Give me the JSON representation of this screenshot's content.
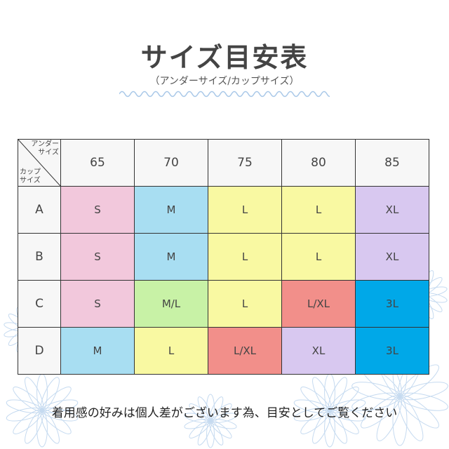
{
  "title": "サイズ目安表",
  "subtitle": "（アンダーサイズ/カップサイズ）",
  "table": {
    "corner_top": [
      "アンダー",
      "サイズ"
    ],
    "corner_bottom": [
      "カップ",
      "サイズ"
    ],
    "columns": [
      "65",
      "70",
      "75",
      "80",
      "85"
    ],
    "rows": [
      {
        "cup": "A",
        "cells": [
          "S",
          "M",
          "L",
          "L",
          "XL"
        ]
      },
      {
        "cup": "B",
        "cells": [
          "S",
          "M",
          "L",
          "L",
          "XL"
        ]
      },
      {
        "cup": "C",
        "cells": [
          "S",
          "M/L",
          "L",
          "L/XL",
          "3L"
        ]
      },
      {
        "cup": "D",
        "cells": [
          "M",
          "L",
          "L/XL",
          "XL",
          "3L"
        ]
      }
    ]
  },
  "size_colors": {
    "S": "#f2c8dc",
    "M": "#a8def2",
    "M/L": "#c8f2a6",
    "L": "#f9f9a2",
    "L/XL": "#f28f8a",
    "XL": "#d8c8f0",
    "3L": "#00a8e8"
  },
  "note": "着用感の好みは個人差がございます為、目安としてご覧ください"
}
